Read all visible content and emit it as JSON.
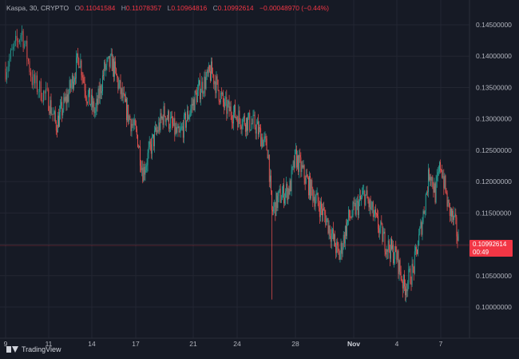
{
  "header": {
    "symbol": "Kaspa, 30, CRYPTO",
    "open_label": "O",
    "open": "0.11041584",
    "high_label": "H",
    "high": "0.11078357",
    "low_label": "L",
    "low": "0.10964816",
    "close_label": "C",
    "close": "0.10992614",
    "change": "−0.00048970 (−0.44%)"
  },
  "price_tag": {
    "price": "0.10992614",
    "countdown": "00:49"
  },
  "watermark": "TradingView",
  "colors": {
    "background": "#161a25",
    "up": "#26a69a",
    "down": "#ef5350",
    "grid": "#232632",
    "axis_text": "#b2b5be",
    "tag": "#f23645"
  },
  "chart_data": {
    "type": "candlestick",
    "title": "",
    "xlabel": "",
    "ylabel": "",
    "ylim": [
      0.0975,
      0.1475
    ],
    "y_ticks": [
      "0.14500000",
      "0.14000000",
      "0.13500000",
      "0.13000000",
      "0.12500000",
      "0.12000000",
      "0.11500000",
      "0.11000000",
      "0.10500000",
      "0.10000000"
    ],
    "x_ticks": [
      "9",
      "11",
      "14",
      "17",
      "21",
      "24",
      "28",
      "Nov",
      "4",
      "7"
    ],
    "grid": true,
    "last_price": 0.10992614,
    "series": [
      {
        "price_path": [
          {
            "x": "Oct 9 00:00",
            "close": 0.138
          },
          {
            "x": "Oct 9 18:00",
            "close": 0.144
          },
          {
            "x": "Oct 10 06:00",
            "close": 0.136
          },
          {
            "x": "Oct 11 00:00",
            "close": 0.133
          },
          {
            "x": "Oct 11 12:00",
            "close": 0.129
          },
          {
            "x": "Oct 12 09:00",
            "close": 0.134
          },
          {
            "x": "Oct 13 03:00",
            "close": 0.14
          },
          {
            "x": "Oct 13 15:00",
            "close": 0.134
          },
          {
            "x": "Oct 14 06:00",
            "close": 0.131
          },
          {
            "x": "Oct 14 21:00",
            "close": 0.138
          },
          {
            "x": "Oct 15 09:00",
            "close": 0.139
          },
          {
            "x": "Oct 16 06:00",
            "close": 0.132
          },
          {
            "x": "Oct 17 03:00",
            "close": 0.127
          },
          {
            "x": "Oct 17 12:00",
            "close": 0.1215
          },
          {
            "x": "Oct 18 03:00",
            "close": 0.126
          },
          {
            "x": "Oct 19 00:00",
            "close": 0.131
          },
          {
            "x": "Oct 20 00:00",
            "close": 0.127
          },
          {
            "x": "Oct 21 06:00",
            "close": 0.134
          },
          {
            "x": "Oct 22 06:00",
            "close": 0.1375
          },
          {
            "x": "Oct 23 03:00",
            "close": 0.132
          },
          {
            "x": "Oct 24 06:00",
            "close": 0.13
          },
          {
            "x": "Oct 25 06:00",
            "close": 0.129
          },
          {
            "x": "Oct 26 03:00",
            "close": 0.125
          },
          {
            "x": "Oct 26 09:00",
            "close": 0.115
          },
          {
            "x": "Oct 26 21:00",
            "close": 0.1175
          },
          {
            "x": "Oct 27 15:00",
            "close": 0.119
          },
          {
            "x": "Oct 28 00:00",
            "close": 0.124
          },
          {
            "x": "Oct 29 00:00",
            "close": 0.119
          },
          {
            "x": "Oct 30 03:00",
            "close": 0.114
          },
          {
            "x": "Oct 31 00:00",
            "close": 0.108
          },
          {
            "x": "Oct 31 15:00",
            "close": 0.114
          },
          {
            "x": "Nov 1 06:00",
            "close": 0.116
          },
          {
            "x": "Nov 1 18:00",
            "close": 0.118
          },
          {
            "x": "Nov 2 12:00",
            "close": 0.114
          },
          {
            "x": "Nov 3 06:00",
            "close": 0.11
          },
          {
            "x": "Nov 4 00:00",
            "close": 0.108
          },
          {
            "x": "Nov 4 12:00",
            "close": 0.103
          },
          {
            "x": "Nov 5 03:00",
            "close": 0.106
          },
          {
            "x": "Nov 5 18:00",
            "close": 0.114
          },
          {
            "x": "Nov 6 06:00",
            "close": 0.122
          },
          {
            "x": "Nov 6 15:00",
            "close": 0.118
          },
          {
            "x": "Nov 7 00:00",
            "close": 0.123
          },
          {
            "x": "Nov 7 12:00",
            "close": 0.116
          },
          {
            "x": "Nov 8 00:00",
            "close": 0.113
          },
          {
            "x": "Nov 8 06:00",
            "close": 0.1099
          }
        ],
        "spikes": [
          {
            "x": "Oct 26 09:00",
            "low": 0.1012
          },
          {
            "x": "Nov 4 09:00",
            "low": 0.1015
          }
        ]
      }
    ]
  }
}
